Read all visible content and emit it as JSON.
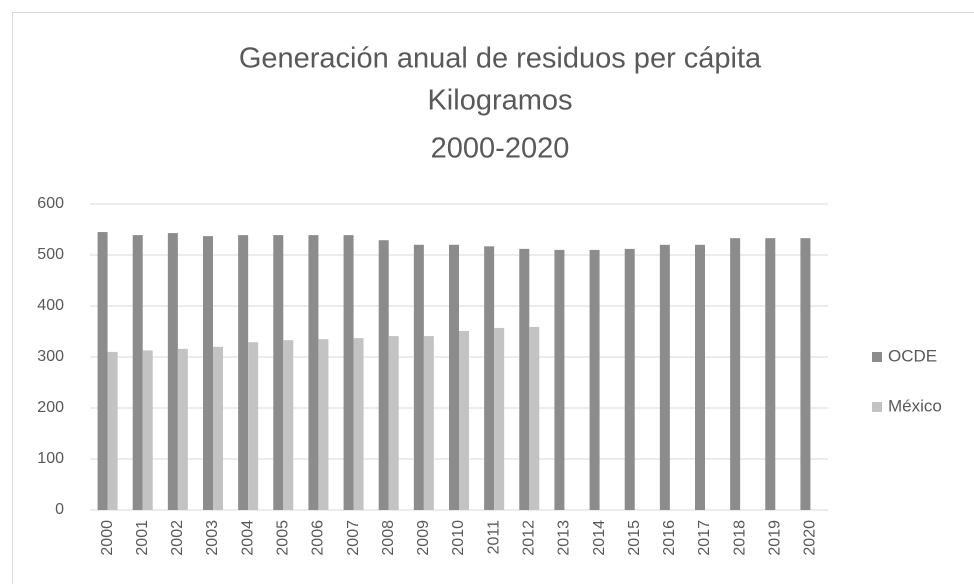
{
  "chart_data": {
    "type": "bar",
    "title_lines": [
      "Generación anual de residuos per cápita",
      "Kilogramos",
      "2000-2020"
    ],
    "categories": [
      "2000",
      "2001",
      "2002",
      "2003",
      "2004",
      "2005",
      "2006",
      "2007",
      "2008",
      "2009",
      "2010",
      "2011",
      "2012",
      "2013",
      "2014",
      "2015",
      "2016",
      "2017",
      "2018",
      "2019",
      "2020"
    ],
    "series": [
      {
        "name": "OCDE",
        "color": "#8c8c8c",
        "values": [
          545,
          539,
          543,
          537,
          539,
          539,
          539,
          539,
          529,
          520,
          520,
          517,
          512,
          510,
          510,
          512,
          520,
          520,
          533,
          533,
          533
        ]
      },
      {
        "name": "México",
        "color": "#c3c3c3",
        "values": [
          310,
          313,
          316,
          320,
          329,
          333,
          335,
          337,
          341,
          341,
          351,
          357,
          359,
          null,
          null,
          null,
          null,
          null,
          null,
          null,
          null
        ]
      }
    ],
    "ylim": [
      0,
      600
    ],
    "yticks": [
      0,
      100,
      200,
      300,
      400,
      500,
      600
    ],
    "grid": true,
    "legend": "right"
  }
}
